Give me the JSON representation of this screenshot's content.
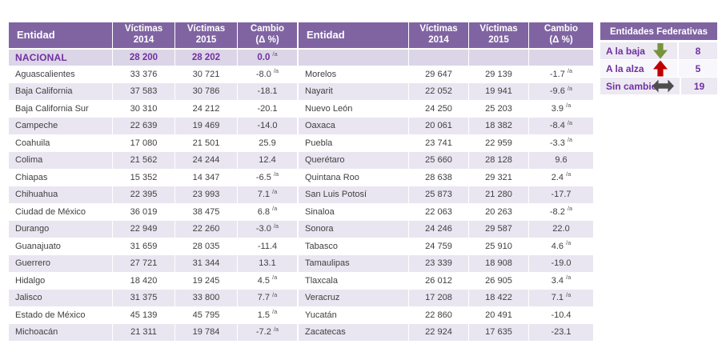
{
  "chart_data": {
    "type": "table",
    "columns": [
      "Entidad",
      "Víctimas\n2014",
      "Víctimas\n2015",
      "Cambio\n(Δ %)"
    ],
    "national": {
      "name": "NACIONAL",
      "v2014": "28 200",
      "v2015": "28 202",
      "cambio": "0.0",
      "note": "/a"
    },
    "left_rows": [
      {
        "name": "Aguascalientes",
        "v2014": "33 376",
        "v2015": "30 721",
        "cambio": "-8.0",
        "note": "/a"
      },
      {
        "name": "Baja California",
        "v2014": "37 583",
        "v2015": "30 786",
        "cambio": "-18.1",
        "note": ""
      },
      {
        "name": "Baja California Sur",
        "v2014": "30 310",
        "v2015": "24 212",
        "cambio": "-20.1",
        "note": ""
      },
      {
        "name": "Campeche",
        "v2014": "22 639",
        "v2015": "19 469",
        "cambio": "-14.0",
        "note": ""
      },
      {
        "name": "Coahuila",
        "v2014": "17 080",
        "v2015": "21 501",
        "cambio": "25.9",
        "note": ""
      },
      {
        "name": "Colima",
        "v2014": "21 562",
        "v2015": "24 244",
        "cambio": "12.4",
        "note": ""
      },
      {
        "name": "Chiapas",
        "v2014": "15 352",
        "v2015": "14 347",
        "cambio": "-6.5",
        "note": "/a"
      },
      {
        "name": "Chihuahua",
        "v2014": "22 395",
        "v2015": "23 993",
        "cambio": "7.1",
        "note": "/a"
      },
      {
        "name": "Ciudad de México",
        "v2014": "36 019",
        "v2015": "38 475",
        "cambio": "6.8",
        "note": "/a"
      },
      {
        "name": "Durango",
        "v2014": "22 949",
        "v2015": "22 260",
        "cambio": "-3.0",
        "note": "/a"
      },
      {
        "name": "Guanajuato",
        "v2014": "31 659",
        "v2015": "28 035",
        "cambio": "-11.4",
        "note": ""
      },
      {
        "name": "Guerrero",
        "v2014": "27 721",
        "v2015": "31 344",
        "cambio": "13.1",
        "note": ""
      },
      {
        "name": "Hidalgo",
        "v2014": "18 420",
        "v2015": "19 245",
        "cambio": "4.5",
        "note": "/a"
      },
      {
        "name": "Jalisco",
        "v2014": "31 375",
        "v2015": "33 800",
        "cambio": "7.7",
        "note": "/a"
      },
      {
        "name": "Estado de México",
        "v2014": "45 139",
        "v2015": "45 795",
        "cambio": "1.5",
        "note": "/a"
      },
      {
        "name": "Michoacán",
        "v2014": "21 311",
        "v2015": "19 784",
        "cambio": "-7.2",
        "note": "/a"
      }
    ],
    "right_rows": [
      {
        "name": "Morelos",
        "v2014": "29 647",
        "v2015": "29 139",
        "cambio": "-1.7",
        "note": "/a"
      },
      {
        "name": "Nayarit",
        "v2014": "22 052",
        "v2015": "19 941",
        "cambio": "-9.6",
        "note": "/a"
      },
      {
        "name": "Nuevo León",
        "v2014": "24 250",
        "v2015": "25 203",
        "cambio": "3.9",
        "note": "/a"
      },
      {
        "name": "Oaxaca",
        "v2014": "20 061",
        "v2015": "18 382",
        "cambio": "-8.4",
        "note": "/a"
      },
      {
        "name": "Puebla",
        "v2014": "23 741",
        "v2015": "22 959",
        "cambio": "-3.3",
        "note": "/a"
      },
      {
        "name": "Querétaro",
        "v2014": "25 660",
        "v2015": "28 128",
        "cambio": "9.6",
        "note": ""
      },
      {
        "name": "Quintana Roo",
        "v2014": "28 638",
        "v2015": "29 321",
        "cambio": "2.4",
        "note": "/a"
      },
      {
        "name": "San Luis Potosí",
        "v2014": "25 873",
        "v2015": "21 280",
        "cambio": "-17.7",
        "note": ""
      },
      {
        "name": "Sinaloa",
        "v2014": "22 063",
        "v2015": "20 263",
        "cambio": "-8.2",
        "note": "/a"
      },
      {
        "name": "Sonora",
        "v2014": "24 246",
        "v2015": "29 587",
        "cambio": "22.0",
        "note": ""
      },
      {
        "name": "Tabasco",
        "v2014": "24 759",
        "v2015": "25 910",
        "cambio": "4.6",
        "note": "/a"
      },
      {
        "name": "Tamaulipas",
        "v2014": "23 339",
        "v2015": "18 908",
        "cambio": "-19.0",
        "note": ""
      },
      {
        "name": "Tlaxcala",
        "v2014": "26 012",
        "v2015": "26 905",
        "cambio": "3.4",
        "note": "/a"
      },
      {
        "name": "Veracruz",
        "v2014": "17 208",
        "v2015": "18 422",
        "cambio": "7.1",
        "note": "/a"
      },
      {
        "name": "Yucatán",
        "v2014": "22 860",
        "v2015": "20 491",
        "cambio": "-10.4",
        "note": ""
      },
      {
        "name": "Zacatecas",
        "v2014": "22 924",
        "v2015": "17 635",
        "cambio": "-23.1",
        "note": ""
      }
    ],
    "legend": {
      "title": "Entidades Federativas",
      "rows": [
        {
          "label": "A la baja",
          "icon": "arrow-down-icon",
          "color": "#77933C",
          "count": "8"
        },
        {
          "label": "A la alza",
          "icon": "arrow-up-icon",
          "color": "#C00000",
          "count": "5"
        },
        {
          "label": "Sin cambio",
          "icon": "arrow-left-right-icon",
          "color": "#4D4D4D",
          "count": "19"
        }
      ]
    }
  },
  "colors": {
    "header_bg": "#8064A2",
    "header_text": "#FFFFFF",
    "national_bg": "#DCD5E7",
    "national_text": "#7030A0",
    "band_row_bg": "#E9E6F1",
    "cell_text": "#404040",
    "note_text": "#595959"
  }
}
